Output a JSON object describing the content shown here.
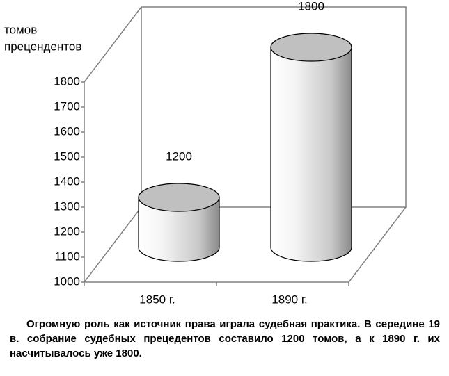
{
  "chart_data": {
    "type": "bar3d",
    "ylabel_lines": [
      "томов",
      "прецендентов"
    ],
    "categories": [
      "1850 г.",
      "1890 г."
    ],
    "values": [
      1200,
      1800
    ],
    "ylim": [
      1000,
      1800
    ],
    "yticks": [
      1000,
      1100,
      1200,
      1300,
      1400,
      1500,
      1600,
      1700,
      1800
    ],
    "color": "#c0c0c0",
    "grid": false,
    "caption": "Огромную роль как источник права играла судебная практика. В середине 19 в. собрание судебных прецедентов составило 1200 томов, а к 1890 г. их насчитывалось уже 1800."
  }
}
